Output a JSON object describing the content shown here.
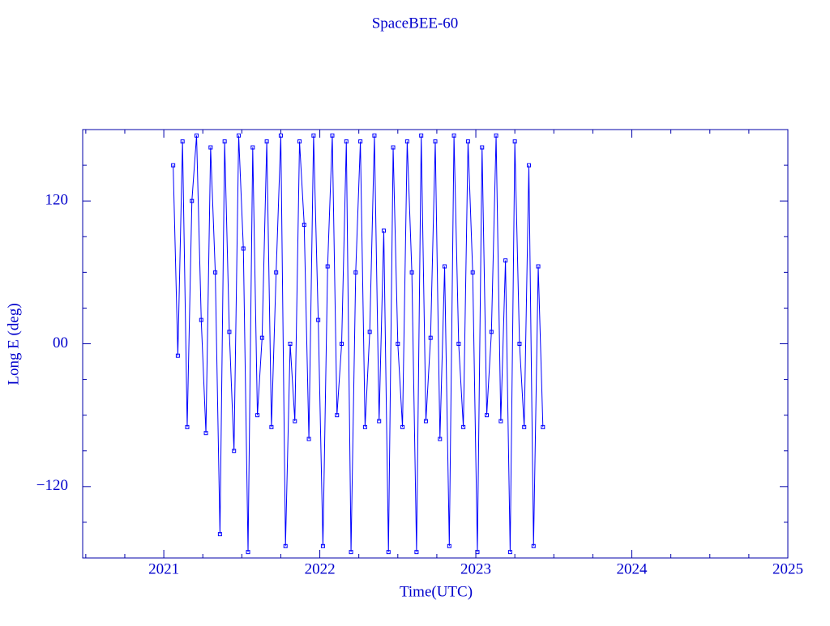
{
  "chart_data": {
    "type": "line",
    "title": "SpaceBEE-60",
    "x_label": "Time(UTC)",
    "y_label": "Long E (deg)",
    "color": "#0000ff",
    "marker": "square",
    "xlim": [
      2020.48,
      2025
    ],
    "xticks": [
      2021,
      2022,
      2023,
      2024,
      2025
    ],
    "ylim": [
      -180,
      180
    ],
    "yticks": [
      {
        "value": -120,
        "label": "−120"
      },
      {
        "value": 0,
        "label": "00"
      },
      120
    ],
    "x": [
      2021.06,
      2021.09,
      2021.12,
      2021.15,
      2021.18,
      2021.21,
      2021.24,
      2021.27,
      2021.3,
      2021.33,
      2021.36,
      2021.39,
      2021.42,
      2021.45,
      2021.48,
      2021.51,
      2021.54,
      2021.57,
      2021.6,
      2021.63,
      2021.66,
      2021.69,
      2021.72,
      2021.75,
      2021.78,
      2021.81,
      2021.84,
      2021.87,
      2021.9,
      2021.93,
      2021.96,
      2021.99,
      2022.02,
      2022.05,
      2022.08,
      2022.11,
      2022.14,
      2022.17,
      2022.2,
      2022.23,
      2022.26,
      2022.29,
      2022.32,
      2022.35,
      2022.38,
      2022.41,
      2022.44,
      2022.47,
      2022.5,
      2022.53,
      2022.56,
      2022.59,
      2022.62,
      2022.65,
      2022.68,
      2022.71,
      2022.74,
      2022.77,
      2022.8,
      2022.83,
      2022.86,
      2022.89,
      2022.92,
      2022.95,
      2022.98,
      2023.01,
      2023.04,
      2023.07,
      2023.1,
      2023.13,
      2023.16,
      2023.19,
      2023.22,
      2023.25,
      2023.28,
      2023.31,
      2023.34,
      2023.37,
      2023.4,
      2023.43
    ],
    "values": [
      150,
      -10,
      170,
      -70,
      120,
      175,
      20,
      -75,
      165,
      60,
      -160,
      170,
      10,
      -90,
      175,
      80,
      -175,
      165,
      -60,
      5,
      170,
      -70,
      60,
      175,
      -170,
      0,
      -65,
      170,
      100,
      -80,
      175,
      20,
      -170,
      65,
      175,
      -60,
      0,
      170,
      -175,
      60,
      170,
      -70,
      10,
      175,
      -65,
      95,
      -175,
      165,
      0,
      -70,
      170,
      60,
      -175,
      175,
      -65,
      5,
      170,
      -80,
      65,
      -170,
      175,
      0,
      -70,
      170,
      60,
      -175,
      165,
      -60,
      10,
      175,
      -65,
      70,
      -175,
      170,
      0,
      -70,
      150,
      -170,
      65,
      -70
    ]
  }
}
